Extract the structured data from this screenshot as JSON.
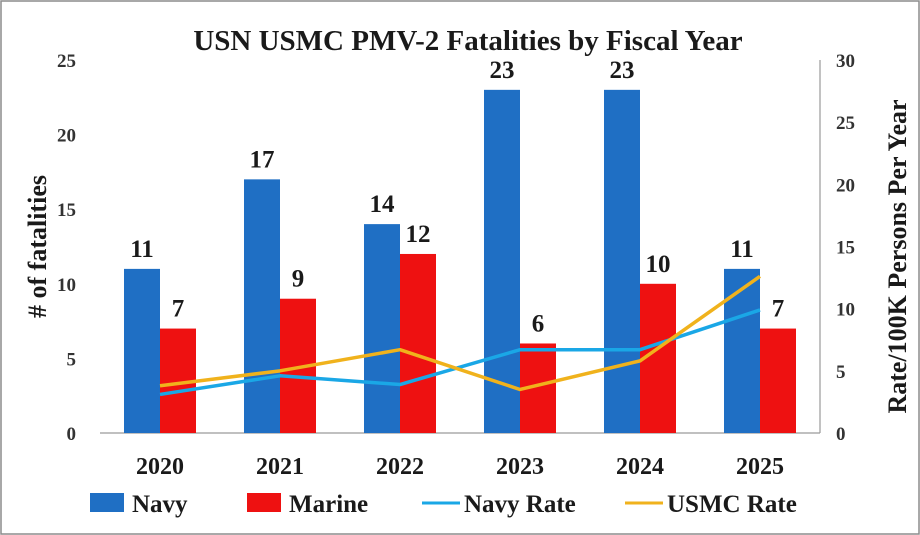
{
  "chart_data": {
    "type": "bar",
    "title": "USN USMC PMV-2 Fatalities by Fiscal Year",
    "categories": [
      "2020",
      "2021",
      "2022",
      "2023",
      "2024",
      "2025"
    ],
    "ylabel": "# of fatalities",
    "y2label": "Rate/100K Persons Per Year",
    "ylim": [
      0,
      25
    ],
    "y2lim": [
      0,
      30
    ],
    "yticks": [
      "0",
      "5",
      "10",
      "15",
      "20",
      "25"
    ],
    "y2ticks": [
      "0",
      "5",
      "10",
      "15",
      "20",
      "25",
      "30"
    ],
    "grid": false,
    "legend_position": "bottom",
    "series": [
      {
        "name": "Navy",
        "kind": "bar",
        "axis": "left",
        "color": "#1f6fc4",
        "values": [
          11,
          17,
          14,
          23,
          23,
          11
        ]
      },
      {
        "name": "Marine",
        "kind": "bar",
        "axis": "left",
        "color": "#ee1111",
        "values": [
          7,
          9,
          12,
          6,
          10,
          7
        ]
      },
      {
        "name": "Navy Rate",
        "kind": "line",
        "axis": "right",
        "color": "#1aa7e6",
        "values": [
          3.1,
          4.6,
          3.9,
          6.7,
          6.7,
          9.9
        ]
      },
      {
        "name": "USMC Rate",
        "kind": "line",
        "axis": "right",
        "color": "#f0b21c",
        "values": [
          3.8,
          5.0,
          6.7,
          3.5,
          5.8,
          12.6
        ]
      }
    ]
  }
}
